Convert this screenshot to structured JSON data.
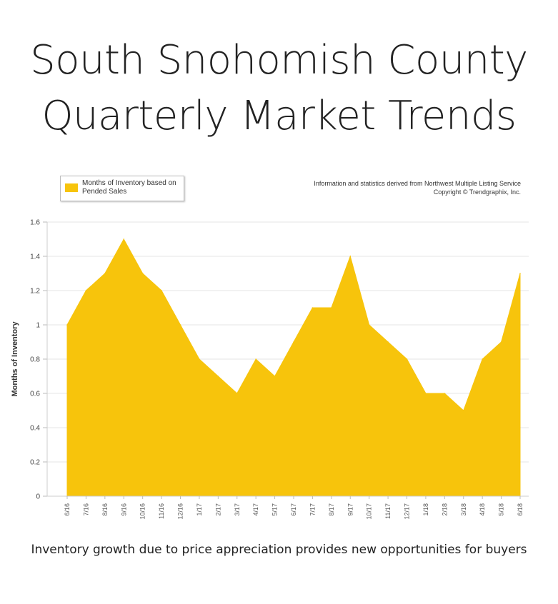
{
  "header": {
    "title_line1": "South Snohomish County",
    "title_line2": "Quarterly Market Trends"
  },
  "legend": {
    "label": "Months of Inventory based on Pended Sales",
    "color": "#f7c40c"
  },
  "source": {
    "line1": "Information and statistics derived from Northwest Multiple Listing Service",
    "line2": "Copyright © Trendgraphix, Inc."
  },
  "caption": "Inventory growth due to price appreciation provides new opportunities for buyers",
  "chart_data": {
    "type": "area",
    "ylabel": "Months of Inventory",
    "xlabel": "",
    "ylim": [
      0,
      1.6
    ],
    "yticks": [
      "0",
      "0.2",
      "0.4",
      "0.6",
      "0.8",
      "1",
      "1.2",
      "1.4",
      "1.6"
    ],
    "grid": true,
    "legend_position": "top-left",
    "categories": [
      "6/16",
      "7/16",
      "8/16",
      "9/16",
      "10/16",
      "11/16",
      "12/16",
      "1/17",
      "2/17",
      "3/17",
      "4/17",
      "5/17",
      "6/17",
      "7/17",
      "8/17",
      "9/17",
      "10/17",
      "11/17",
      "12/17",
      "1/18",
      "2/18",
      "3/18",
      "4/18",
      "5/18",
      "6/18"
    ],
    "series": [
      {
        "name": "Months of Inventory based on Pended Sales",
        "values": [
          1.0,
          1.2,
          1.3,
          1.5,
          1.3,
          1.2,
          1.0,
          0.8,
          0.7,
          0.6,
          0.8,
          0.7,
          0.9,
          1.1,
          1.1,
          1.4,
          1.0,
          0.9,
          0.8,
          0.6,
          0.6,
          0.5,
          0.8,
          0.9,
          1.3
        ]
      }
    ]
  }
}
